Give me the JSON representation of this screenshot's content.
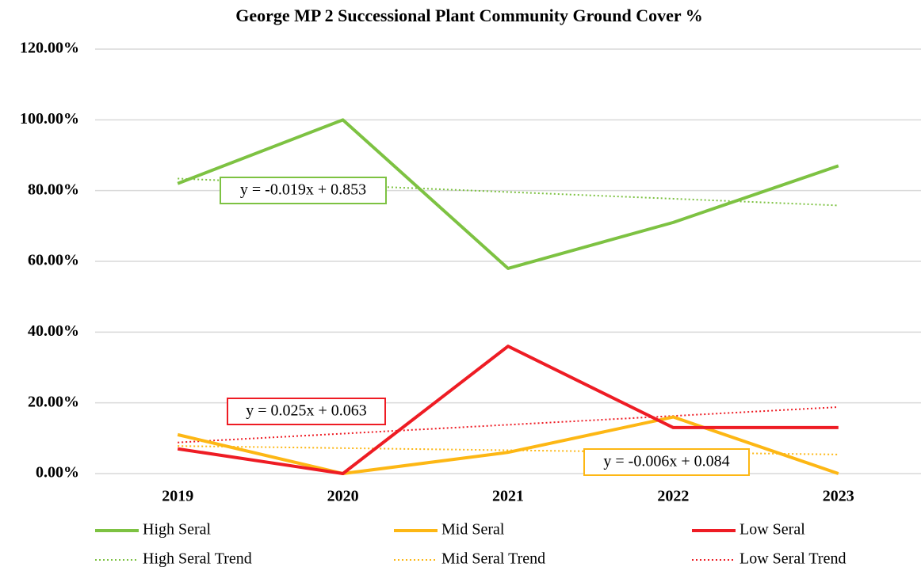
{
  "chart_data": {
    "type": "line",
    "title": "George MP 2 Successional Plant Community Ground Cover %",
    "categories": [
      "2019",
      "2020",
      "2021",
      "2022",
      "2023"
    ],
    "series": [
      {
        "name": "High Seral",
        "color": "#7dc242",
        "style": "solid",
        "values": [
          82,
          100,
          58,
          71,
          87
        ]
      },
      {
        "name": "Mid Seral",
        "color": "#fdb714",
        "style": "solid",
        "values": [
          11,
          0,
          6,
          16,
          0
        ]
      },
      {
        "name": "Low Seral",
        "color": "#ee1c24",
        "style": "solid",
        "values": [
          7,
          0,
          36,
          13,
          13
        ]
      },
      {
        "name": "High Seral Trend",
        "color": "#7dc242",
        "style": "dotted",
        "values": [
          83.4,
          81.5,
          79.6,
          77.7,
          75.8
        ]
      },
      {
        "name": "Mid Seral Trend",
        "color": "#fdb714",
        "style": "dotted",
        "values": [
          7.8,
          7.2,
          6.6,
          6.0,
          5.4
        ]
      },
      {
        "name": "Low Seral Trend",
        "color": "#ee1c24",
        "style": "dotted",
        "values": [
          8.8,
          11.3,
          13.8,
          16.3,
          18.8
        ]
      }
    ],
    "annotations": [
      {
        "text": "y = -0.019x + 0.853",
        "color": "#7dc242"
      },
      {
        "text": "y = 0.025x + 0.063",
        "color": "#ee1c24"
      },
      {
        "text": "y = -0.006x + 0.084",
        "color": "#fdb714"
      }
    ],
    "ylim": [
      0,
      120
    ],
    "yticks": [
      {
        "value": 0,
        "label": "0.00%"
      },
      {
        "value": 20,
        "label": "20.00%"
      },
      {
        "value": 40,
        "label": "40.00%"
      },
      {
        "value": 60,
        "label": "60.00%"
      },
      {
        "value": 80,
        "label": "80.00%"
      },
      {
        "value": 100,
        "label": "100.00%"
      },
      {
        "value": 120,
        "label": "120.00%"
      }
    ],
    "grid": true
  }
}
